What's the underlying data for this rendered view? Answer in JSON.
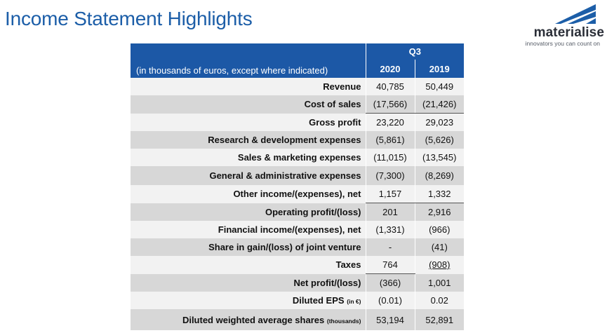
{
  "slide": {
    "title": "Income Statement Highlights"
  },
  "logo": {
    "wordmark": "materialise",
    "tagline": "innovators you can count on",
    "brand_color": "#1c5ea8"
  },
  "table": {
    "period": "Q3",
    "unit_note": "(in thousands of euros, except where indicated)",
    "years": [
      "2020",
      "2019"
    ],
    "rows": [
      {
        "label": "Revenue",
        "y2020": "40,785",
        "y2019": "50,449"
      },
      {
        "label": "Cost of sales",
        "y2020": "(17,566)",
        "y2019": "(21,426)"
      },
      {
        "label": "Gross profit",
        "y2020": "23,220",
        "y2019": "29,023"
      },
      {
        "label": "Research & development expenses",
        "y2020": "(5,861)",
        "y2019": "(5,626)"
      },
      {
        "label": "Sales & marketing expenses",
        "y2020": "(11,015)",
        "y2019": "(13,545)"
      },
      {
        "label": "General & administrative expenses",
        "y2020": "(7,300)",
        "y2019": "(8,269)"
      },
      {
        "label": "Other income/(expenses), net",
        "y2020": "1,157",
        "y2019": "1,332"
      },
      {
        "label": "Operating profit/(loss)",
        "y2020": "201",
        "y2019": "2,916"
      },
      {
        "label": "Financial income/(expenses), net",
        "y2020": "(1,331)",
        "y2019": "(966)"
      },
      {
        "label": "Share in gain/(loss) of joint venture",
        "y2020": "-",
        "y2019": "(41)"
      },
      {
        "label": "Taxes",
        "y2020": "764",
        "y2019": "(908)"
      },
      {
        "label": "Net profit/(loss)",
        "y2020": "(366)",
        "y2019": "1,001"
      },
      {
        "label": "Diluted EPS",
        "label_suffix": "(in €)",
        "y2020": "(0.01)",
        "y2019": "0.02"
      },
      {
        "label": "Diluted weighted average shares",
        "label_suffix": "(thousands)",
        "y2020": "53,194",
        "y2019": "52,891"
      }
    ]
  }
}
